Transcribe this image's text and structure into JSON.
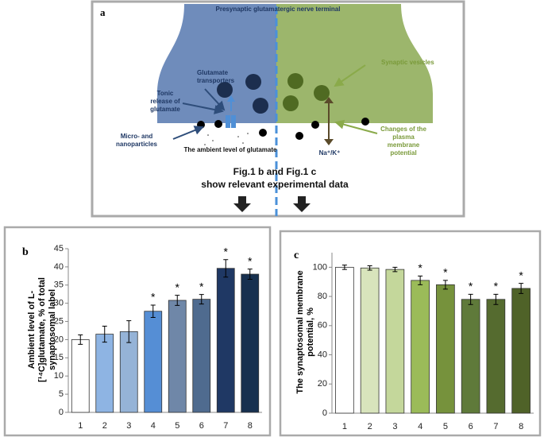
{
  "diagram": {
    "label": "a",
    "terminal": "Presynaptic glutamatergic nerve terminal",
    "transporters": [
      "Glutamate",
      "transporters"
    ],
    "tonic": [
      "Tonic",
      "release of",
      "glutamate"
    ],
    "particles": [
      "Micro- and",
      "nanoparticles"
    ],
    "ambient": "The ambient level of glutamate",
    "vesicles": "Synaptic vesicles",
    "membrane": [
      "Changes of the",
      "plasma",
      "membrane",
      "potential"
    ],
    "ions": "Na⁺/K⁺",
    "caption": [
      "Fig.1 b and Fig.1 c",
      "show relevant experimental data"
    ]
  },
  "chart_data": [
    {
      "type": "bar",
      "label": "b",
      "ylabel": [
        "Ambient level of L-",
        "[¹⁴C]glutamate, % of total",
        "synaptosomal label"
      ],
      "categories": [
        "1",
        "2",
        "3",
        "4",
        "5",
        "6",
        "7",
        "8"
      ],
      "values": [
        20,
        21.5,
        22.2,
        27.8,
        30.8,
        31.1,
        39.6,
        38
      ],
      "errors": [
        1.3,
        2.2,
        3,
        1.7,
        1.4,
        1.3,
        2.4,
        1.4
      ],
      "annotations": [
        null,
        null,
        null,
        "*",
        "*",
        "*",
        "*",
        "*"
      ],
      "colors": [
        "#ffffff",
        "#8eb4e3",
        "#95b3d7",
        "#558ed5",
        "#6f87a8",
        "#4f6b8f",
        "#1f3864",
        "#17304f"
      ],
      "ylim": [
        0,
        45
      ],
      "yticks": [
        0,
        5,
        10,
        15,
        20,
        25,
        30,
        35,
        40,
        45
      ]
    },
    {
      "type": "bar",
      "label": "c",
      "ylabel": [
        "The synaptosomal membrane",
        "potential, %"
      ],
      "categories": [
        "1",
        "2",
        "3",
        "4",
        "5",
        "6",
        "7",
        "8"
      ],
      "values": [
        100,
        99.5,
        98.5,
        91,
        88,
        78,
        78,
        85.5
      ],
      "errors": [
        1.5,
        1.5,
        1.5,
        3,
        3,
        3.5,
        3.5,
        3.5
      ],
      "annotations": [
        null,
        null,
        null,
        "*",
        "*",
        "*",
        "*",
        "*"
      ],
      "colors": [
        "#ffffff",
        "#d8e4bc",
        "#c4d79b",
        "#9bbb59",
        "#76923c",
        "#5f7a3a",
        "#556b2f",
        "#4f6228"
      ],
      "ylim": [
        0,
        110
      ],
      "yticks": [
        0,
        20,
        40,
        60,
        80,
        100
      ]
    }
  ]
}
